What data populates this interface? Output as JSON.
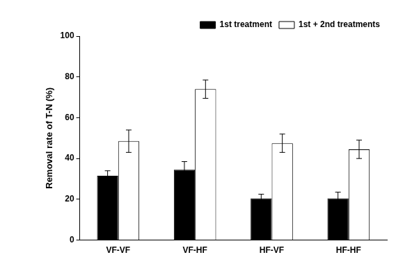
{
  "chart_data": {
    "type": "bar",
    "y_label": "Removal rate of T-N (%)",
    "categories": [
      "VF-VF",
      "VF-HF",
      "HF-VF",
      "HF-HF"
    ],
    "series": [
      {
        "name": "1st treatment",
        "color": "#000000",
        "values": [
          31.5,
          34.5,
          20.5,
          20.5
        ],
        "errors": [
          2.5,
          4,
          2,
          3
        ]
      },
      {
        "name": "1st + 2nd treatments",
        "color": "#ffffff",
        "values": [
          48.5,
          74,
          47.5,
          44.5
        ],
        "errors": [
          5.5,
          4.5,
          4.5,
          4.5
        ]
      }
    ],
    "ylim": [
      0,
      100
    ],
    "yticks": [
      0,
      20,
      40,
      60,
      80,
      100
    ],
    "grid": false,
    "legend": "top-right"
  }
}
